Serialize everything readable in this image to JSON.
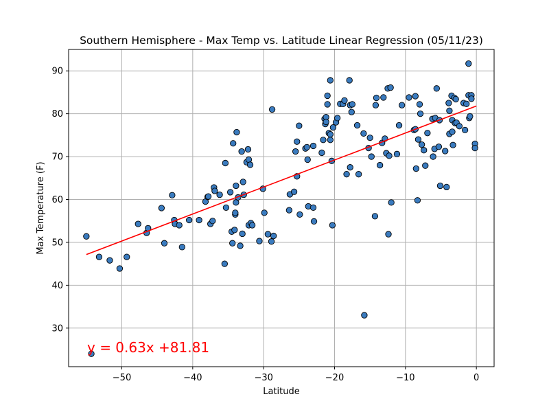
{
  "chart_data": {
    "type": "scatter",
    "title": "Southern Hemisphere - Max Temp vs. Latitude Linear Regression (05/11/23)",
    "xlabel": "Latitude",
    "ylabel": "Max Temperature (F)",
    "xlim": [
      -57.5,
      2.5
    ],
    "ylim": [
      21,
      95
    ],
    "xticks": [
      -50,
      -40,
      -30,
      -20,
      -10,
      0
    ],
    "xtick_labels": [
      "−50",
      "−40",
      "−30",
      "−20",
      "−10",
      "0"
    ],
    "yticks": [
      30,
      40,
      50,
      60,
      70,
      80,
      90
    ],
    "ytick_labels": [
      "30",
      "40",
      "50",
      "60",
      "70",
      "80",
      "90"
    ],
    "grid": true,
    "colors": {
      "points": "#3a7bbf",
      "point_edge": "#000000",
      "regression": "#ff0000",
      "grid": "#b0b0b0"
    },
    "regression": {
      "slope": 0.63,
      "intercept": 81.81,
      "x_range": [
        -55,
        0
      ],
      "equation": "y = 0.63x +81.81"
    },
    "points": [
      [
        -55.0,
        51.4
      ],
      [
        -54.3,
        24.0
      ],
      [
        -53.2,
        46.6
      ],
      [
        -51.7,
        45.8
      ],
      [
        -50.3,
        43.9
      ],
      [
        -49.3,
        46.6
      ],
      [
        -47.7,
        54.3
      ],
      [
        -46.5,
        52.2
      ],
      [
        -46.3,
        53.3
      ],
      [
        -44.4,
        58.0
      ],
      [
        -44.0,
        49.8
      ],
      [
        -42.9,
        61.0
      ],
      [
        -42.6,
        55.2
      ],
      [
        -42.5,
        54.3
      ],
      [
        -41.9,
        54.0
      ],
      [
        -41.5,
        48.9
      ],
      [
        -40.5,
        55.2
      ],
      [
        -39.1,
        55.2
      ],
      [
        -38.2,
        59.5
      ],
      [
        -37.9,
        60.6
      ],
      [
        -37.8,
        60.7
      ],
      [
        -37.5,
        54.3
      ],
      [
        -37.2,
        55.0
      ],
      [
        -37.0,
        62.8
      ],
      [
        -36.9,
        62.0
      ],
      [
        -36.2,
        61.1
      ],
      [
        -35.5,
        45.0
      ],
      [
        -35.4,
        68.5
      ],
      [
        -35.3,
        58.1
      ],
      [
        -34.7,
        61.7
      ],
      [
        -34.5,
        52.5
      ],
      [
        -34.4,
        49.8
      ],
      [
        -34.3,
        73.1
      ],
      [
        -34.1,
        52.9
      ],
      [
        -34.0,
        56.5
      ],
      [
        -34.0,
        56.9
      ],
      [
        -33.9,
        63.2
      ],
      [
        -33.9,
        59.3
      ],
      [
        -33.8,
        75.7
      ],
      [
        -33.6,
        60.5
      ],
      [
        -33.3,
        49.2
      ],
      [
        -33.1,
        71.2
      ],
      [
        -33.0,
        52.0
      ],
      [
        -32.9,
        64.1
      ],
      [
        -32.8,
        61.1
      ],
      [
        -32.4,
        68.7
      ],
      [
        -32.2,
        71.7
      ],
      [
        -32.1,
        69.3
      ],
      [
        -32.1,
        54.0
      ],
      [
        -31.9,
        68.1
      ],
      [
        -31.8,
        54.5
      ],
      [
        -31.6,
        54.0
      ],
      [
        -30.6,
        50.3
      ],
      [
        -30.1,
        62.5
      ],
      [
        -29.9,
        56.9
      ],
      [
        -29.4,
        51.9
      ],
      [
        -28.9,
        50.2
      ],
      [
        -28.8,
        81.0
      ],
      [
        -28.6,
        51.5
      ],
      [
        -26.4,
        57.5
      ],
      [
        -26.3,
        61.2
      ],
      [
        -25.7,
        61.8
      ],
      [
        -25.5,
        71.2
      ],
      [
        -25.3,
        65.4
      ],
      [
        -25.3,
        73.5
      ],
      [
        -25.0,
        77.2
      ],
      [
        -24.9,
        56.5
      ],
      [
        -24.1,
        71.9
      ],
      [
        -23.9,
        72.2
      ],
      [
        -23.8,
        69.3
      ],
      [
        -23.7,
        58.4
      ],
      [
        -23.0,
        72.5
      ],
      [
        -23.0,
        58.1
      ],
      [
        -22.9,
        54.9
      ],
      [
        -21.8,
        70.9
      ],
      [
        -21.6,
        73.9
      ],
      [
        -21.4,
        78.8
      ],
      [
        -21.3,
        77.6
      ],
      [
        -21.2,
        79.2
      ],
      [
        -21.2,
        78.1
      ],
      [
        -21.0,
        84.2
      ],
      [
        -21.0,
        82.2
      ],
      [
        -20.8,
        75.5
      ],
      [
        -20.6,
        73.9
      ],
      [
        -20.6,
        75.2
      ],
      [
        -20.6,
        87.8
      ],
      [
        -20.4,
        69.0
      ],
      [
        -20.3,
        54.0
      ],
      [
        -20.2,
        76.8
      ],
      [
        -19.8,
        78.0
      ],
      [
        -19.6,
        79.0
      ],
      [
        -19.2,
        82.3
      ],
      [
        -18.8,
        82.3
      ],
      [
        -18.6,
        83.1
      ],
      [
        -18.3,
        65.9
      ],
      [
        -17.9,
        87.8
      ],
      [
        -17.8,
        67.5
      ],
      [
        -17.8,
        82.0
      ],
      [
        -17.6,
        80.4
      ],
      [
        -17.5,
        82.2
      ],
      [
        -16.8,
        77.3
      ],
      [
        -16.6,
        65.9
      ],
      [
        -15.9,
        75.4
      ],
      [
        -15.8,
        33.0
      ],
      [
        -15.2,
        72.0
      ],
      [
        -15.0,
        74.4
      ],
      [
        -14.8,
        70.0
      ],
      [
        -14.3,
        56.1
      ],
      [
        -14.2,
        82.0
      ],
      [
        -14.1,
        83.7
      ],
      [
        -13.6,
        68.0
      ],
      [
        -13.3,
        73.2
      ],
      [
        -13.1,
        83.8
      ],
      [
        -12.9,
        74.2
      ],
      [
        -12.7,
        70.8
      ],
      [
        -12.5,
        85.9
      ],
      [
        -12.4,
        51.9
      ],
      [
        -12.3,
        70.2
      ],
      [
        -12.1,
        86.1
      ],
      [
        -12.0,
        59.3
      ],
      [
        -11.2,
        70.6
      ],
      [
        -10.9,
        77.3
      ],
      [
        -10.5,
        82.0
      ],
      [
        -9.5,
        83.8
      ],
      [
        -8.8,
        76.2
      ],
      [
        -8.6,
        76.4
      ],
      [
        -8.6,
        84.1
      ],
      [
        -8.5,
        67.2
      ],
      [
        -8.3,
        59.8
      ],
      [
        -8.2,
        74.0
      ],
      [
        -8.0,
        82.2
      ],
      [
        -7.9,
        80.0
      ],
      [
        -7.7,
        72.8
      ],
      [
        -7.4,
        71.5
      ],
      [
        -7.2,
        67.9
      ],
      [
        -6.9,
        75.5
      ],
      [
        -6.2,
        78.8
      ],
      [
        -6.1,
        70.0
      ],
      [
        -5.9,
        71.8
      ],
      [
        -5.8,
        79.0
      ],
      [
        -5.6,
        85.9
      ],
      [
        -5.3,
        72.3
      ],
      [
        -5.2,
        78.5
      ],
      [
        -5.1,
        63.2
      ],
      [
        -4.4,
        71.3
      ],
      [
        -4.2,
        62.9
      ],
      [
        -3.9,
        82.5
      ],
      [
        -3.8,
        75.3
      ],
      [
        -3.8,
        80.7
      ],
      [
        -3.5,
        84.2
      ],
      [
        -3.4,
        75.8
      ],
      [
        -3.4,
        78.5
      ],
      [
        -3.3,
        72.7
      ],
      [
        -3.1,
        83.7
      ],
      [
        -3.0,
        77.8
      ],
      [
        -2.9,
        83.4
      ],
      [
        -2.8,
        77.9
      ],
      [
        -2.4,
        77.1
      ],
      [
        -1.8,
        82.5
      ],
      [
        -1.6,
        76.2
      ],
      [
        -1.4,
        82.3
      ],
      [
        -1.1,
        84.3
      ],
      [
        -1.1,
        91.7
      ],
      [
        -1.0,
        79.0
      ],
      [
        -0.9,
        79.4
      ],
      [
        -0.7,
        84.3
      ],
      [
        -0.7,
        83.5
      ],
      [
        -0.2,
        73.0
      ],
      [
        -0.2,
        72.0
      ]
    ]
  }
}
